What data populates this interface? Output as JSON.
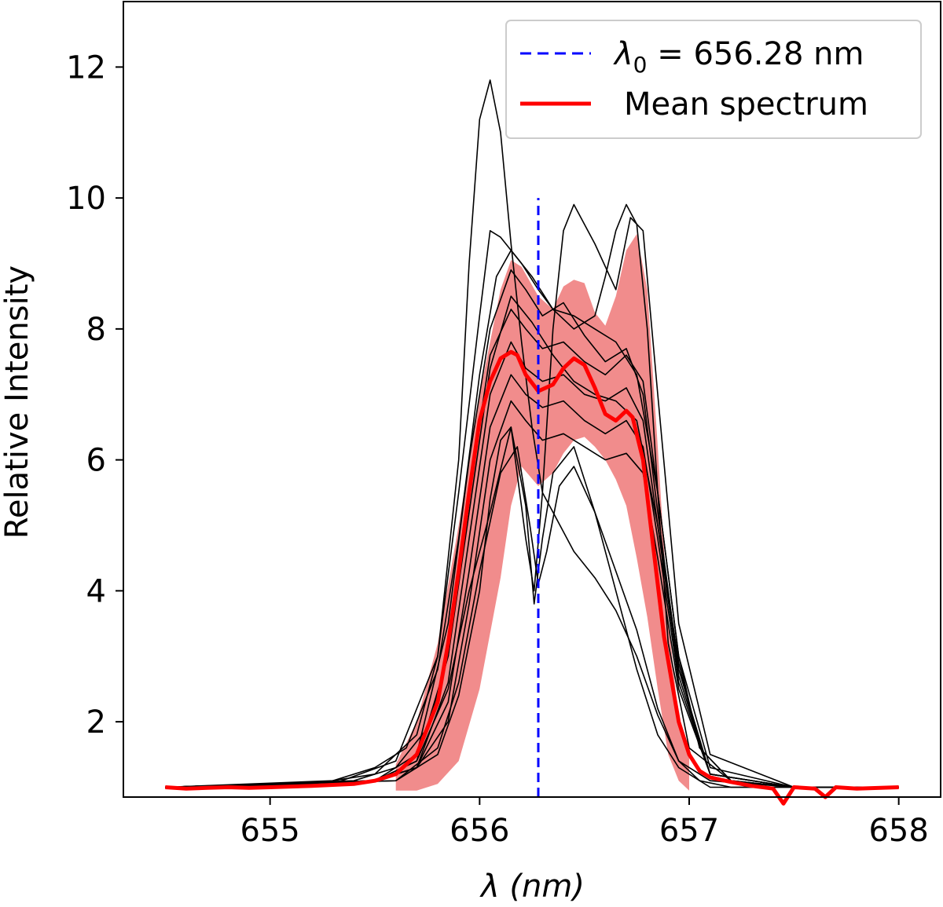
{
  "chart_data": {
    "type": "line",
    "title": "",
    "xlabel": "λ (nm)",
    "ylabel": "Relative Intensity",
    "xlim": [
      654.3,
      658.2
    ],
    "ylim": [
      0.85,
      13.0
    ],
    "xticks": [
      655,
      656,
      657,
      658
    ],
    "xtick_labels": [
      "655",
      "656",
      "657",
      "658"
    ],
    "yticks": [
      2,
      4,
      6,
      8,
      10,
      12
    ],
    "ytick_labels": [
      "2",
      "4",
      "6",
      "8",
      "10",
      "12"
    ],
    "grid": false,
    "legend_position": "top-right",
    "colors": {
      "individual": "#000000",
      "mean": "#ff0000",
      "band": "#f08080",
      "reference": "#0000ff"
    },
    "reference_line": {
      "label_symbol": "λ",
      "label_subscript": "0",
      "label_value": " = 656.28 nm",
      "x": 656.28,
      "y_range": [
        0.85,
        10.0
      ]
    },
    "mean_spectrum": {
      "name": "Mean spectrum",
      "x": [
        654.5,
        654.6,
        654.7,
        654.8,
        654.9,
        655.0,
        655.2,
        655.4,
        655.5,
        655.6,
        655.7,
        655.8,
        655.85,
        655.9,
        655.95,
        656.0,
        656.05,
        656.1,
        656.15,
        656.18,
        656.22,
        656.28,
        656.35,
        656.4,
        656.45,
        656.5,
        656.55,
        656.6,
        656.65,
        656.7,
        656.73,
        656.78,
        656.82,
        656.88,
        656.95,
        657.0,
        657.05,
        657.1,
        657.2,
        657.3,
        657.4,
        657.45,
        657.5,
        657.6,
        657.65,
        657.7,
        657.8,
        658.0
      ],
      "y": [
        1.0,
        0.98,
        0.99,
        1.0,
        0.99,
        1.0,
        1.02,
        1.05,
        1.1,
        1.2,
        1.5,
        2.3,
        3.2,
        4.3,
        5.5,
        6.6,
        7.2,
        7.55,
        7.65,
        7.6,
        7.3,
        7.05,
        7.15,
        7.4,
        7.55,
        7.45,
        7.1,
        6.7,
        6.6,
        6.75,
        6.65,
        6.0,
        4.9,
        3.3,
        2.0,
        1.5,
        1.25,
        1.15,
        1.08,
        1.02,
        0.98,
        0.75,
        1.0,
        0.98,
        0.85,
        1.0,
        0.98,
        1.0
      ]
    },
    "mean_band": {
      "x": [
        655.6,
        655.7,
        655.8,
        655.9,
        656.0,
        656.1,
        656.15,
        656.2,
        656.28,
        656.35,
        656.4,
        656.45,
        656.5,
        656.55,
        656.6,
        656.65,
        656.7,
        656.75,
        656.8,
        656.85,
        656.9,
        656.95,
        657.0
      ],
      "upper": [
        1.35,
        2.0,
        3.2,
        5.0,
        7.0,
        8.6,
        9.05,
        8.95,
        8.5,
        8.3,
        8.65,
        8.75,
        8.7,
        8.25,
        8.05,
        8.5,
        9.2,
        9.45,
        8.6,
        6.2,
        3.6,
        2.0,
        1.6
      ],
      "lower": [
        0.95,
        0.95,
        1.05,
        1.4,
        2.5,
        4.2,
        5.3,
        5.9,
        5.6,
        5.8,
        6.1,
        6.3,
        6.35,
        6.2,
        6.0,
        5.7,
        5.3,
        4.5,
        3.6,
        2.5,
        1.5,
        1.1,
        0.95
      ]
    },
    "individual_spectra": [
      {
        "x": [
          654.5,
          655.2,
          655.5,
          655.7,
          655.8,
          655.9,
          655.95,
          656.0,
          656.05,
          656.1,
          656.15,
          656.2,
          656.25,
          656.3,
          656.35,
          656.45,
          656.55,
          656.65,
          656.75,
          656.85,
          656.95,
          657.1,
          657.5,
          658.0
        ],
        "y": [
          1.0,
          1.05,
          1.2,
          1.8,
          3.0,
          6.0,
          9.0,
          11.2,
          11.8,
          11.0,
          9.3,
          7.8,
          6.5,
          5.5,
          5.2,
          4.6,
          4.2,
          3.7,
          3.0,
          2.1,
          1.4,
          1.1,
          1.0,
          1.0
        ]
      },
      {
        "x": [
          654.5,
          655.3,
          655.6,
          655.8,
          655.9,
          656.0,
          656.05,
          656.1,
          656.2,
          656.28,
          656.35,
          656.45,
          656.55,
          656.6,
          656.65,
          656.7,
          656.75,
          656.8,
          656.85,
          656.9,
          657.0,
          657.2,
          657.5,
          658.0
        ],
        "y": [
          1.0,
          1.05,
          1.4,
          3.0,
          5.5,
          8.2,
          9.5,
          9.4,
          9.0,
          8.6,
          8.3,
          8.0,
          8.2,
          8.8,
          9.5,
          9.9,
          9.6,
          8.0,
          5.5,
          3.2,
          1.6,
          1.1,
          1.0,
          1.0
        ]
      },
      {
        "x": [
          654.5,
          655.5,
          655.7,
          655.85,
          655.95,
          656.05,
          656.15,
          656.22,
          656.26,
          656.3,
          656.35,
          656.4,
          656.45,
          656.55,
          656.65,
          656.72,
          656.78,
          656.85,
          656.95,
          657.1,
          657.5,
          658.0
        ],
        "y": [
          1.0,
          1.1,
          1.4,
          2.5,
          4.0,
          5.2,
          6.5,
          4.8,
          4.0,
          5.5,
          8.0,
          9.5,
          9.9,
          9.3,
          8.6,
          9.7,
          9.5,
          7.0,
          3.5,
          1.5,
          1.0,
          1.0
        ]
      },
      {
        "x": [
          654.5,
          655.6,
          655.8,
          655.9,
          656.0,
          656.05,
          656.1,
          656.15,
          656.22,
          656.26,
          656.3,
          656.35,
          656.45,
          656.55,
          656.65,
          656.75,
          656.85,
          656.95,
          657.1,
          657.5,
          658.0
        ],
        "y": [
          1.0,
          1.1,
          1.5,
          2.4,
          4.0,
          5.4,
          6.3,
          6.5,
          5.3,
          3.8,
          4.8,
          5.8,
          6.2,
          5.2,
          4.0,
          2.8,
          1.8,
          1.3,
          1.0,
          1.0,
          1.0
        ]
      },
      {
        "x": [
          654.5,
          655.6,
          655.8,
          655.9,
          656.0,
          656.1,
          656.18,
          656.24,
          656.28,
          656.32,
          656.38,
          656.45,
          656.55,
          656.65,
          656.75,
          656.85,
          656.95,
          657.05,
          657.2,
          657.5,
          658.0
        ],
        "y": [
          1.0,
          1.1,
          1.6,
          2.6,
          4.3,
          5.8,
          6.2,
          5.0,
          4.1,
          4.6,
          5.6,
          5.9,
          5.2,
          4.3,
          3.4,
          2.2,
          1.4,
          1.1,
          1.0,
          1.0,
          1.0
        ]
      },
      {
        "x": [
          654.5,
          655.5,
          655.7,
          655.85,
          655.95,
          656.05,
          656.15,
          656.22,
          656.3,
          656.4,
          656.5,
          656.6,
          656.7,
          656.78,
          656.85,
          656.95,
          657.1,
          657.5,
          658.0
        ],
        "y": [
          1.0,
          1.1,
          1.5,
          3.5,
          6.0,
          8.0,
          8.9,
          8.6,
          8.2,
          8.4,
          7.9,
          7.5,
          7.7,
          7.0,
          5.2,
          2.8,
          1.2,
          1.0,
          1.0
        ]
      },
      {
        "x": [
          654.5,
          655.5,
          655.7,
          655.85,
          655.95,
          656.05,
          656.15,
          656.22,
          656.3,
          656.4,
          656.5,
          656.6,
          656.7,
          656.78,
          656.85,
          656.95,
          657.1,
          657.5,
          658.0
        ],
        "y": [
          1.0,
          1.1,
          1.4,
          3.0,
          5.5,
          7.6,
          8.3,
          8.0,
          7.7,
          7.8,
          7.5,
          7.3,
          7.6,
          7.2,
          5.5,
          3.0,
          1.3,
          1.0,
          1.0
        ]
      },
      {
        "x": [
          654.5,
          655.5,
          655.7,
          655.85,
          655.95,
          656.05,
          656.15,
          656.22,
          656.3,
          656.4,
          656.5,
          656.6,
          656.7,
          656.78,
          656.85,
          656.95,
          657.1,
          657.5,
          658.0
        ],
        "y": [
          1.0,
          1.1,
          1.3,
          2.6,
          4.8,
          7.0,
          7.8,
          7.4,
          7.2,
          7.3,
          7.0,
          6.9,
          7.1,
          6.6,
          5.0,
          2.7,
          1.2,
          1.0,
          1.0
        ]
      },
      {
        "x": [
          654.5,
          655.5,
          655.7,
          655.85,
          655.95,
          656.05,
          656.15,
          656.22,
          656.3,
          656.4,
          656.5,
          656.6,
          656.7,
          656.78,
          656.85,
          656.95,
          657.1,
          657.5,
          658.0
        ],
        "y": [
          1.0,
          1.1,
          1.3,
          2.3,
          4.3,
          6.5,
          7.3,
          7.0,
          6.8,
          6.9,
          6.6,
          6.4,
          6.6,
          6.2,
          4.8,
          2.6,
          1.2,
          1.0,
          1.0
        ]
      },
      {
        "x": [
          654.5,
          655.5,
          655.7,
          655.85,
          655.95,
          656.05,
          656.15,
          656.22,
          656.3,
          656.4,
          656.5,
          656.6,
          656.7,
          656.78,
          656.85,
          656.95,
          657.1,
          657.5,
          658.0
        ],
        "y": [
          1.0,
          1.1,
          1.3,
          2.0,
          3.8,
          6.0,
          6.9,
          6.6,
          6.3,
          6.4,
          6.2,
          6.0,
          6.1,
          5.8,
          4.5,
          2.5,
          1.2,
          1.0,
          1.0
        ]
      },
      {
        "x": [
          654.5,
          655.4,
          655.6,
          655.75,
          655.85,
          655.95,
          656.05,
          656.15,
          656.25,
          656.35,
          656.45,
          656.55,
          656.65,
          656.75,
          656.85,
          656.95,
          657.05,
          657.2,
          657.5,
          658.0
        ],
        "y": [
          1.0,
          1.1,
          1.3,
          1.9,
          3.0,
          5.2,
          7.4,
          8.5,
          8.1,
          7.6,
          7.2,
          7.0,
          6.9,
          6.6,
          5.0,
          2.9,
          1.6,
          1.1,
          1.0,
          1.0
        ]
      },
      {
        "x": [
          654.5,
          655.3,
          655.5,
          655.65,
          655.8,
          655.9,
          656.0,
          656.08,
          656.15,
          656.25,
          656.35,
          656.45,
          656.55,
          656.65,
          656.75,
          656.85,
          656.95,
          657.05,
          657.2,
          657.5,
          658.0
        ],
        "y": [
          1.0,
          1.1,
          1.3,
          1.6,
          2.8,
          4.8,
          7.3,
          8.8,
          9.2,
          8.8,
          8.3,
          8.2,
          8.0,
          7.8,
          7.3,
          5.5,
          3.0,
          1.6,
          1.1,
          1.0,
          1.0
        ]
      }
    ]
  }
}
